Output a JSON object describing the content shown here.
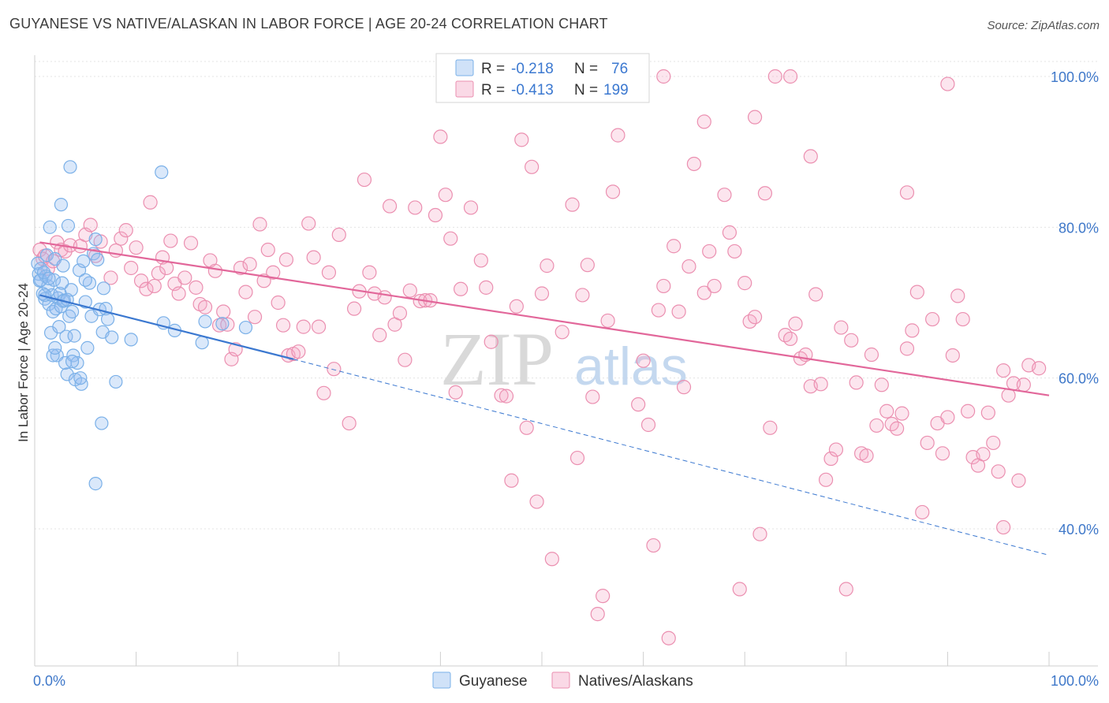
{
  "title": "GUYANESE VS NATIVE/ALASKAN IN LABOR FORCE | AGE 20-24 CORRELATION CHART",
  "source": "Source: ZipAtlas.com",
  "watermark": {
    "zip": "ZIP",
    "atlas": "atlas"
  },
  "colors": {
    "blue": "#7ab0e8",
    "blue_fill": "rgba(150,190,240,0.35)",
    "blue_line": "#3b78d0",
    "pink": "#eb8fb0",
    "pink_fill": "rgba(245,170,200,0.30)",
    "pink_line": "#e2679a",
    "axis_text": "#3f78c9",
    "grid": "#e3e3e3"
  },
  "legend_box": {
    "rows": [
      {
        "r_label": "R = ",
        "r_value": "-0.218",
        "n_label": "N = ",
        "n_value": "76"
      },
      {
        "r_label": "R = ",
        "r_value": "-0.413",
        "n_label": "N = ",
        "n_value": "199"
      }
    ]
  },
  "bottom_legend": [
    "Guyanese",
    "Natives/Alaskans"
  ],
  "chart_data": {
    "type": "scatter",
    "title": "GUYANESE VS NATIVE/ALASKAN IN LABOR FORCE | AGE 20-24 CORRELATION CHART",
    "xlabel": "",
    "ylabel": "In Labor Force | Age 20-24",
    "xlim": [
      0,
      100
    ],
    "ylim": [
      20,
      102
    ],
    "x_tick_labels": [
      "0.0%",
      "100.0%"
    ],
    "y_ticks": [
      40,
      60,
      80,
      100
    ],
    "y_tick_labels": [
      "40.0%",
      "60.0%",
      "80.0%",
      "100.0%"
    ],
    "grid": true,
    "legend_position": "top-center",
    "series": [
      {
        "name": "Guyanese",
        "r": -0.218,
        "n": 76,
        "trend": {
          "x0": 0.5,
          "y0": 71.0,
          "x1": 25.5,
          "y1": 62.5,
          "dashed_to_x": 100,
          "dashed_to_y": 36.5
        },
        "points": [
          [
            0.3,
            75.2
          ],
          [
            0.4,
            73.8
          ],
          [
            0.5,
            72.9
          ],
          [
            0.6,
            74.5
          ],
          [
            0.8,
            71.2
          ],
          [
            1.0,
            70.5
          ],
          [
            1.1,
            73.5
          ],
          [
            1.2,
            76.3
          ],
          [
            1.3,
            72.2
          ],
          [
            1.4,
            69.8
          ],
          [
            1.5,
            80.0
          ],
          [
            1.6,
            66.0
          ],
          [
            1.7,
            71.0
          ],
          [
            1.8,
            68.8
          ],
          [
            1.9,
            73.0
          ],
          [
            2.0,
            75.8
          ],
          [
            2.1,
            69.2
          ],
          [
            2.2,
            63.0
          ],
          [
            2.3,
            70.6
          ],
          [
            2.4,
            66.8
          ],
          [
            2.5,
            71.2
          ],
          [
            2.6,
            69.5
          ],
          [
            2.7,
            72.6
          ],
          [
            2.8,
            74.9
          ],
          [
            2.9,
            70.3
          ],
          [
            3.0,
            62.0
          ],
          [
            3.1,
            65.5
          ],
          [
            3.2,
            60.5
          ],
          [
            3.3,
            80.2
          ],
          [
            3.4,
            68.2
          ],
          [
            3.5,
            88.0
          ],
          [
            3.6,
            71.7
          ],
          [
            3.7,
            68.8
          ],
          [
            3.8,
            63.0
          ],
          [
            3.9,
            65.6
          ],
          [
            4.0,
            59.8
          ],
          [
            4.2,
            62.0
          ],
          [
            4.4,
            74.3
          ],
          [
            4.6,
            59.2
          ],
          [
            4.8,
            75.5
          ],
          [
            5.0,
            70.1
          ],
          [
            5.2,
            64.0
          ],
          [
            5.4,
            72.6
          ],
          [
            5.6,
            68.2
          ],
          [
            5.8,
            76.5
          ],
          [
            6.0,
            78.4
          ],
          [
            6.2,
            75.7
          ],
          [
            6.4,
            69.1
          ],
          [
            6.6,
            54.0
          ],
          [
            6.7,
            66.1
          ],
          [
            6.8,
            71.9
          ],
          [
            7.0,
            69.2
          ],
          [
            7.2,
            67.8
          ],
          [
            7.6,
            65.4
          ],
          [
            8.0,
            59.5
          ],
          [
            9.5,
            65.1
          ],
          [
            12.5,
            87.3
          ],
          [
            12.7,
            67.3
          ],
          [
            13.8,
            66.3
          ],
          [
            16.5,
            64.7
          ],
          [
            16.8,
            67.5
          ],
          [
            18.5,
            67.2
          ],
          [
            20.8,
            66.7
          ],
          [
            6.0,
            46.0
          ],
          [
            2.6,
            83.0
          ],
          [
            1.0,
            71.0
          ],
          [
            1.8,
            63.0
          ],
          [
            3.7,
            62.2
          ],
          [
            4.5,
            60.0
          ],
          [
            2.0,
            64.0
          ],
          [
            0.6,
            73.0
          ],
          [
            0.9,
            74.0
          ],
          [
            1.4,
            73.2
          ],
          [
            2.8,
            70.2
          ],
          [
            3.2,
            70.4
          ],
          [
            5.0,
            73.0
          ]
        ]
      },
      {
        "name": "Natives/Alaskans",
        "r": -0.413,
        "n": 199,
        "trend": {
          "x0": 0.5,
          "y0": 78.0,
          "x1": 100,
          "y1": 57.7
        },
        "points": [
          [
            0.5,
            77.0
          ],
          [
            0.8,
            75.8
          ],
          [
            1.0,
            76.2
          ],
          [
            1.3,
            74.5
          ],
          [
            1.8,
            75.5
          ],
          [
            2.2,
            78.0
          ],
          [
            2.6,
            77.0
          ],
          [
            3.0,
            76.8
          ],
          [
            3.5,
            77.6
          ],
          [
            4.5,
            77.5
          ],
          [
            5.0,
            79.0
          ],
          [
            5.5,
            80.3
          ],
          [
            6.0,
            76.2
          ],
          [
            6.5,
            78.1
          ],
          [
            7.5,
            73.3
          ],
          [
            8.0,
            76.9
          ],
          [
            8.5,
            78.5
          ],
          [
            9.0,
            79.6
          ],
          [
            9.5,
            74.6
          ],
          [
            10.0,
            77.3
          ],
          [
            10.5,
            72.9
          ],
          [
            11.0,
            71.8
          ],
          [
            11.4,
            83.3
          ],
          [
            11.8,
            72.2
          ],
          [
            12.2,
            73.9
          ],
          [
            12.6,
            76.0
          ],
          [
            13.0,
            74.6
          ],
          [
            13.4,
            78.2
          ],
          [
            13.8,
            72.5
          ],
          [
            14.2,
            71.2
          ],
          [
            14.8,
            73.3
          ],
          [
            15.4,
            77.9
          ],
          [
            15.9,
            72.0
          ],
          [
            16.3,
            69.8
          ],
          [
            16.8,
            69.4
          ],
          [
            17.3,
            75.6
          ],
          [
            17.8,
            74.2
          ],
          [
            18.2,
            67.0
          ],
          [
            18.6,
            68.8
          ],
          [
            19.0,
            67.1
          ],
          [
            19.4,
            62.5
          ],
          [
            19.8,
            63.8
          ],
          [
            20.3,
            74.6
          ],
          [
            20.8,
            71.4
          ],
          [
            21.2,
            75.1
          ],
          [
            21.7,
            68.1
          ],
          [
            22.2,
            80.4
          ],
          [
            22.6,
            72.9
          ],
          [
            23.0,
            77.0
          ],
          [
            23.5,
            74.0
          ],
          [
            24.0,
            70.0
          ],
          [
            24.5,
            67.0
          ],
          [
            25.0,
            63.0
          ],
          [
            25.5,
            63.2
          ],
          [
            26.0,
            63.5
          ],
          [
            26.5,
            66.8
          ],
          [
            27.0,
            80.5
          ],
          [
            27.5,
            76.0
          ],
          [
            28.0,
            66.8
          ],
          [
            28.5,
            58.0
          ],
          [
            29.0,
            74.0
          ],
          [
            29.5,
            61.2
          ],
          [
            30.0,
            79.0
          ],
          [
            31.0,
            54.0
          ],
          [
            31.5,
            69.2
          ],
          [
            32.0,
            71.5
          ],
          [
            32.5,
            86.3
          ],
          [
            33.0,
            74.0
          ],
          [
            33.5,
            71.2
          ],
          [
            34.0,
            65.7
          ],
          [
            34.5,
            70.7
          ],
          [
            35.0,
            82.8
          ],
          [
            35.5,
            67.1
          ],
          [
            36.0,
            68.6
          ],
          [
            36.5,
            62.4
          ],
          [
            37.0,
            71.6
          ],
          [
            37.5,
            82.6
          ],
          [
            38.0,
            70.2
          ],
          [
            38.5,
            70.3
          ],
          [
            39.0,
            70.3
          ],
          [
            39.5,
            81.6
          ],
          [
            40.0,
            92.0
          ],
          [
            40.5,
            84.3
          ],
          [
            41.0,
            78.5
          ],
          [
            41.5,
            58.1
          ],
          [
            42.0,
            71.8
          ],
          [
            43.0,
            82.6
          ],
          [
            44.0,
            75.6
          ],
          [
            44.5,
            72.0
          ],
          [
            45.0,
            64.8
          ],
          [
            46.0,
            57.7
          ],
          [
            46.5,
            57.6
          ],
          [
            47.0,
            46.4
          ],
          [
            47.5,
            69.5
          ],
          [
            48.0,
            91.6
          ],
          [
            48.5,
            53.4
          ],
          [
            49.0,
            88.0
          ],
          [
            49.5,
            43.6
          ],
          [
            50.0,
            71.2
          ],
          [
            50.5,
            74.9
          ],
          [
            51.0,
            36.0
          ],
          [
            52.0,
            66.1
          ],
          [
            53.0,
            83.0
          ],
          [
            53.5,
            49.4
          ],
          [
            54.0,
            71.0
          ],
          [
            54.5,
            75.0
          ],
          [
            55.0,
            57.5
          ],
          [
            55.5,
            28.7
          ],
          [
            56.0,
            31.1
          ],
          [
            56.5,
            67.6
          ],
          [
            57.0,
            84.7
          ],
          [
            57.5,
            92.2
          ],
          [
            58.0,
            98.5
          ],
          [
            59.0,
            99.8
          ],
          [
            59.5,
            56.5
          ],
          [
            60.0,
            62.3
          ],
          [
            60.5,
            53.8
          ],
          [
            61.0,
            37.8
          ],
          [
            61.5,
            69.0
          ],
          [
            62.0,
            72.2
          ],
          [
            62.5,
            25.5
          ],
          [
            63.0,
            77.5
          ],
          [
            63.5,
            68.8
          ],
          [
            64.0,
            58.8
          ],
          [
            64.5,
            74.8
          ],
          [
            65.0,
            88.4
          ],
          [
            66.0,
            71.3
          ],
          [
            66.5,
            76.8
          ],
          [
            67.0,
            72.2
          ],
          [
            68.0,
            84.3
          ],
          [
            68.5,
            79.3
          ],
          [
            69.0,
            76.8
          ],
          [
            69.5,
            32.0
          ],
          [
            70.0,
            72.6
          ],
          [
            70.5,
            67.5
          ],
          [
            71.0,
            68.1
          ],
          [
            71.5,
            39.3
          ],
          [
            72.0,
            84.5
          ],
          [
            72.5,
            53.4
          ],
          [
            73.0,
            100.0
          ],
          [
            74.0,
            65.7
          ],
          [
            74.5,
            65.2
          ],
          [
            75.0,
            67.2
          ],
          [
            75.5,
            62.6
          ],
          [
            76.0,
            63.1
          ],
          [
            76.5,
            58.9
          ],
          [
            77.0,
            71.1
          ],
          [
            77.5,
            59.2
          ],
          [
            78.0,
            46.5
          ],
          [
            78.5,
            49.3
          ],
          [
            79.0,
            50.5
          ],
          [
            79.5,
            66.7
          ],
          [
            80.0,
            32.0
          ],
          [
            80.5,
            65.0
          ],
          [
            81.0,
            59.4
          ],
          [
            81.5,
            50.0
          ],
          [
            82.0,
            49.7
          ],
          [
            82.5,
            63.1
          ],
          [
            83.0,
            53.7
          ],
          [
            83.5,
            59.1
          ],
          [
            84.0,
            55.6
          ],
          [
            84.5,
            53.9
          ],
          [
            85.0,
            53.3
          ],
          [
            85.5,
            55.3
          ],
          [
            86.0,
            63.9
          ],
          [
            86.5,
            66.3
          ],
          [
            87.0,
            71.4
          ],
          [
            87.5,
            42.2
          ],
          [
            88.0,
            51.4
          ],
          [
            88.5,
            67.8
          ],
          [
            89.0,
            54.0
          ],
          [
            89.5,
            50.0
          ],
          [
            90.0,
            54.8
          ],
          [
            90.5,
            63.0
          ],
          [
            91.0,
            70.9
          ],
          [
            91.5,
            67.8
          ],
          [
            92.0,
            55.6
          ],
          [
            92.5,
            49.5
          ],
          [
            93.0,
            48.4
          ],
          [
            93.5,
            49.9
          ],
          [
            94.0,
            55.4
          ],
          [
            94.5,
            51.4
          ],
          [
            95.0,
            47.6
          ],
          [
            95.5,
            61.0
          ],
          [
            96.0,
            57.7
          ],
          [
            96.5,
            59.3
          ],
          [
            97.0,
            46.4
          ],
          [
            97.5,
            59.1
          ],
          [
            98.0,
            61.7
          ],
          [
            99.0,
            61.3
          ],
          [
            95.5,
            40.2
          ],
          [
            62.0,
            100.0
          ],
          [
            74.5,
            100.0
          ],
          [
            66.0,
            94.0
          ],
          [
            71.0,
            94.6
          ],
          [
            90.0,
            99.0
          ],
          [
            86.0,
            84.6
          ],
          [
            76.5,
            89.4
          ],
          [
            24.8,
            75.7
          ]
        ]
      }
    ]
  }
}
